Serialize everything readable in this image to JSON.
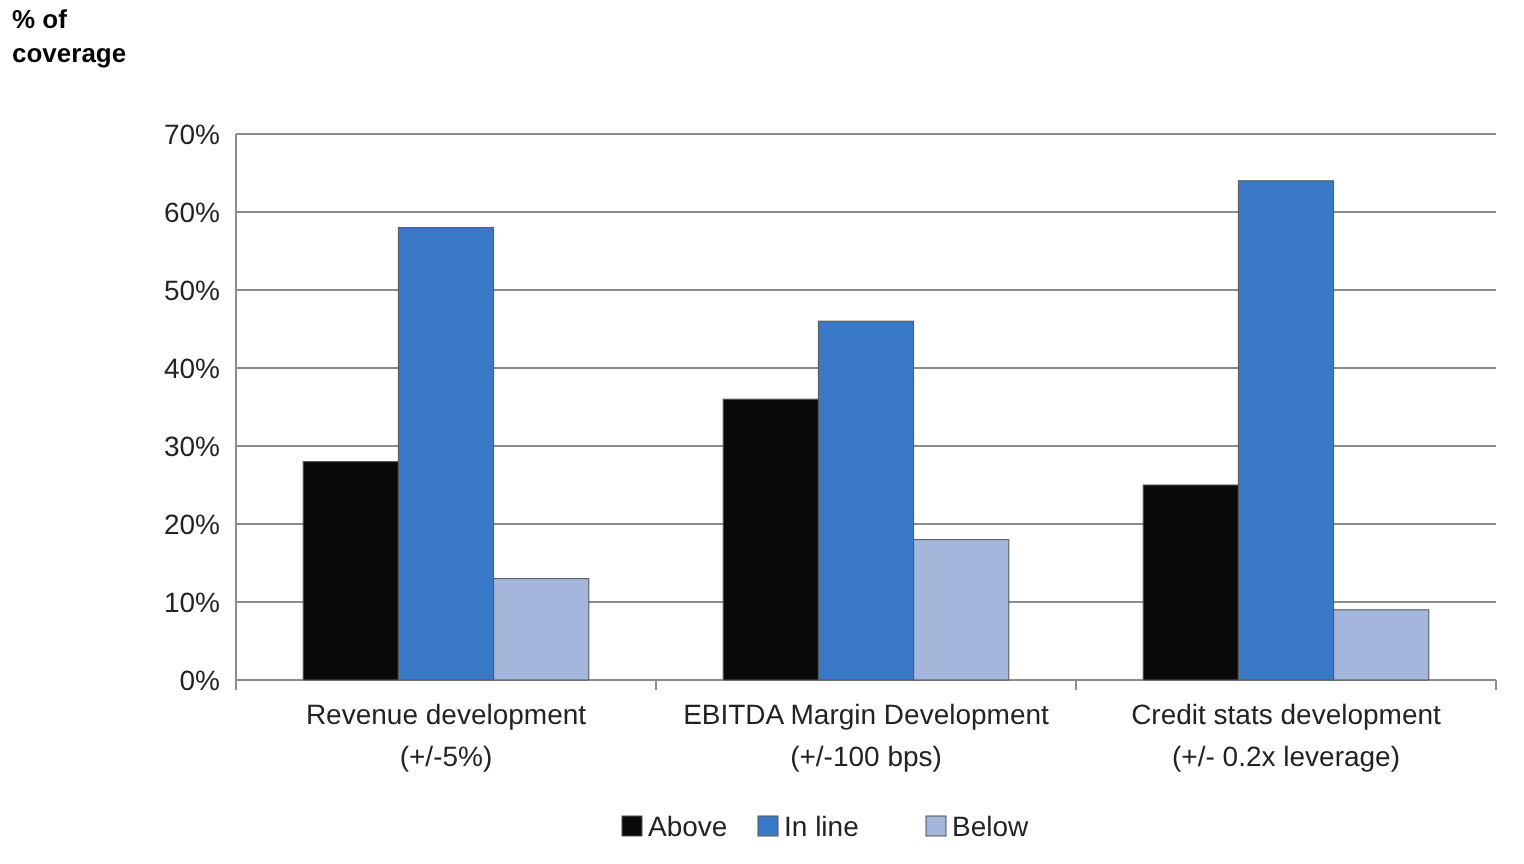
{
  "chart_data": {
    "type": "bar",
    "ylabel": "% of coverage",
    "categories": [
      "Revenue development (+/-5%)",
      "EBITDA Margin Development (+/-100 bps)",
      "Credit stats development (+/- 0.2x leverage)"
    ],
    "series": [
      {
        "name": "Above",
        "color": "#0a0a0a",
        "values": [
          28,
          36,
          25
        ]
      },
      {
        "name": "In line",
        "color": "#3a78c8",
        "values": [
          58,
          46,
          64
        ]
      },
      {
        "name": "Below",
        "color": "#a4b6dc",
        "values": [
          13,
          18,
          9
        ]
      }
    ],
    "ylim": [
      0,
      70
    ],
    "yticks": [
      {
        "value": 0,
        "label": "0%"
      },
      {
        "value": 10,
        "label": "10%"
      },
      {
        "value": 20,
        "label": "20%"
      },
      {
        "value": 30,
        "label": "30%"
      },
      {
        "value": 40,
        "label": "40%"
      },
      {
        "value": 50,
        "label": "50%"
      },
      {
        "value": 60,
        "label": "60%"
      },
      {
        "value": 70,
        "label": "70%"
      }
    ],
    "grid": "y",
    "legend": "bottom"
  }
}
